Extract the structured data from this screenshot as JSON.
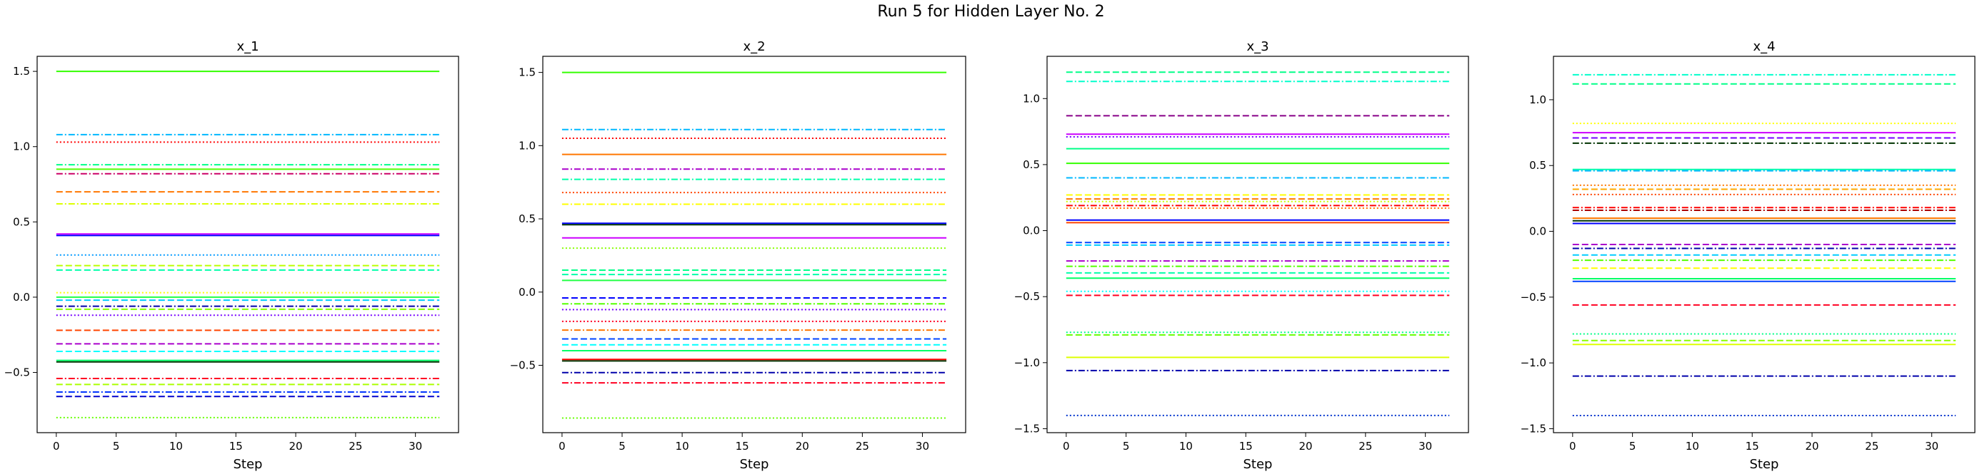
{
  "suptitle": "Run 5 for Hidden Layer No. 2",
  "chart_data": [
    {
      "type": "line",
      "title": "x_1",
      "xlabel": "Step",
      "ylabel": "",
      "xlim": [
        -1.6,
        33.6
      ],
      "ylim": [
        -0.9,
        1.6
      ],
      "xticks": [
        0,
        5,
        10,
        15,
        20,
        25,
        30
      ],
      "yticks": [
        -0.5,
        0.0,
        0.5,
        1.0,
        1.5
      ],
      "ytick_labels": [
        "−0.5",
        "0.0",
        "0.5",
        "1.0",
        "1.5"
      ],
      "x_range": [
        0,
        32
      ],
      "series": [
        {
          "value": 1.5,
          "color": "#33ff00",
          "style": "solid"
        },
        {
          "value": 1.08,
          "color": "#00b8ff",
          "style": "dashdot"
        },
        {
          "value": 1.03,
          "color": "#ff0000",
          "style": "dotted"
        },
        {
          "value": 0.88,
          "color": "#00ff88",
          "style": "dashdot"
        },
        {
          "value": 0.85,
          "color": "#55ff00",
          "style": "solid"
        },
        {
          "value": 0.82,
          "color": "#cc0066",
          "style": "dashdot"
        },
        {
          "value": 0.7,
          "color": "#ff7700",
          "style": "dashed"
        },
        {
          "value": 0.62,
          "color": "#ddff00",
          "style": "dashdot"
        },
        {
          "value": 0.42,
          "color": "#cc00ff",
          "style": "solid"
        },
        {
          "value": 0.41,
          "color": "#0000ff",
          "style": "solid"
        },
        {
          "value": 0.28,
          "color": "#0099ff",
          "style": "dotted"
        },
        {
          "value": 0.21,
          "color": "#bbff00",
          "style": "dashed"
        },
        {
          "value": 0.18,
          "color": "#00ffaa",
          "style": "dashed"
        },
        {
          "value": 0.03,
          "color": "#ffff00",
          "style": "dotted"
        },
        {
          "value": 0.0,
          "color": "#22ff44",
          "style": "solid"
        },
        {
          "value": -0.02,
          "color": "#00ccff",
          "style": "dashed"
        },
        {
          "value": -0.06,
          "color": "#0000aa",
          "style": "dashdot"
        },
        {
          "value": -0.08,
          "color": "#88ff00",
          "style": "dashed"
        },
        {
          "value": -0.12,
          "color": "#7700ff",
          "style": "dotted"
        },
        {
          "value": -0.22,
          "color": "#ff4400",
          "style": "dashed"
        },
        {
          "value": -0.31,
          "color": "#aa00cc",
          "style": "dashed"
        },
        {
          "value": -0.36,
          "color": "#00ffff",
          "style": "dashed"
        },
        {
          "value": -0.42,
          "color": "#00ff66",
          "style": "solid"
        },
        {
          "value": -0.43,
          "color": "#003300",
          "style": "solid"
        },
        {
          "value": -0.54,
          "color": "#ff0022",
          "style": "dashdot"
        },
        {
          "value": -0.58,
          "color": "#aaff00",
          "style": "dashed"
        },
        {
          "value": -0.63,
          "color": "#0033ff",
          "style": "dashdot"
        },
        {
          "value": -0.66,
          "color": "#0000cc",
          "style": "dashed"
        },
        {
          "value": -0.8,
          "color": "#66ff00",
          "style": "dotted"
        }
      ]
    },
    {
      "type": "line",
      "title": "x_2",
      "xlabel": "Step",
      "ylabel": "",
      "xlim": [
        -1.6,
        33.6
      ],
      "ylim": [
        -0.96,
        1.61
      ],
      "xticks": [
        0,
        5,
        10,
        15,
        20,
        25,
        30
      ],
      "yticks": [
        -0.5,
        0.0,
        0.5,
        1.0,
        1.5
      ],
      "ytick_labels": [
        "−0.5",
        "0.0",
        "0.5",
        "1.0",
        "1.5"
      ],
      "x_range": [
        0,
        32
      ],
      "series": [
        {
          "value": 1.5,
          "color": "#33ff00",
          "style": "solid"
        },
        {
          "value": 1.11,
          "color": "#00b8ff",
          "style": "dashdot"
        },
        {
          "value": 1.05,
          "color": "#ff0000",
          "style": "dotted"
        },
        {
          "value": 0.94,
          "color": "#ff7700",
          "style": "solid"
        },
        {
          "value": 0.84,
          "color": "#aa00cc",
          "style": "dashdot"
        },
        {
          "value": 0.77,
          "color": "#00ffaa",
          "style": "dashdot"
        },
        {
          "value": 0.68,
          "color": "#ff4400",
          "style": "dotted"
        },
        {
          "value": 0.6,
          "color": "#ffff00",
          "style": "dashdot"
        },
        {
          "value": 0.47,
          "color": "#0000ff",
          "style": "solid"
        },
        {
          "value": 0.46,
          "color": "#003300",
          "style": "solid"
        },
        {
          "value": 0.37,
          "color": "#cc00ff",
          "style": "solid"
        },
        {
          "value": 0.3,
          "color": "#88ff00",
          "style": "dotted"
        },
        {
          "value": 0.15,
          "color": "#00ff88",
          "style": "dashed"
        },
        {
          "value": 0.12,
          "color": "#00ffaa",
          "style": "dashed"
        },
        {
          "value": 0.08,
          "color": "#22ff44",
          "style": "solid"
        },
        {
          "value": -0.04,
          "color": "#0000ff",
          "style": "dashed"
        },
        {
          "value": -0.08,
          "color": "#55ff00",
          "style": "dashdot"
        },
        {
          "value": -0.12,
          "color": "#7700ff",
          "style": "dotted"
        },
        {
          "value": -0.2,
          "color": "#ff0022",
          "style": "dotted"
        },
        {
          "value": -0.26,
          "color": "#ff7700",
          "style": "dashdot"
        },
        {
          "value": -0.32,
          "color": "#0044ff",
          "style": "dashed"
        },
        {
          "value": -0.36,
          "color": "#00ffff",
          "style": "dashed"
        },
        {
          "value": -0.4,
          "color": "#00ff66",
          "style": "solid"
        },
        {
          "value": -0.46,
          "color": "#ff0000",
          "style": "solid"
        },
        {
          "value": -0.47,
          "color": "#003300",
          "style": "solid"
        },
        {
          "value": -0.55,
          "color": "#0000aa",
          "style": "dashdot"
        },
        {
          "value": -0.62,
          "color": "#ff0022",
          "style": "dashdot"
        },
        {
          "value": -0.86,
          "color": "#66ff00",
          "style": "dotted"
        }
      ]
    },
    {
      "type": "line",
      "title": "x_3",
      "xlabel": "Step",
      "ylabel": "",
      "xlim": [
        -1.6,
        33.6
      ],
      "ylim": [
        -1.53,
        1.32
      ],
      "xticks": [
        0,
        5,
        10,
        15,
        20,
        25,
        30
      ],
      "yticks": [
        -1.5,
        -1.0,
        -0.5,
        0.0,
        0.5,
        1.0
      ],
      "ytick_labels": [
        "−1.5",
        "−1.0",
        "−0.5",
        "0.0",
        "0.5",
        "1.0"
      ],
      "x_range": [
        0,
        32
      ],
      "series": [
        {
          "value": 1.2,
          "color": "#00ff88",
          "style": "dashed"
        },
        {
          "value": 1.13,
          "color": "#00ffcc",
          "style": "dashdot"
        },
        {
          "value": 0.87,
          "color": "#880088",
          "style": "dashed"
        },
        {
          "value": 0.73,
          "color": "#cc00ff",
          "style": "solid"
        },
        {
          "value": 0.71,
          "color": "#7700ff",
          "style": "dotted"
        },
        {
          "value": 0.62,
          "color": "#00ff88",
          "style": "solid"
        },
        {
          "value": 0.51,
          "color": "#33ff00",
          "style": "solid"
        },
        {
          "value": 0.4,
          "color": "#00b8ff",
          "style": "dashdot"
        },
        {
          "value": 0.27,
          "color": "#ffff00",
          "style": "dashed"
        },
        {
          "value": 0.24,
          "color": "#ff7700",
          "style": "dashed"
        },
        {
          "value": 0.22,
          "color": "#ccff00",
          "style": "dotted"
        },
        {
          "value": 0.19,
          "color": "#ff0000",
          "style": "dashdot"
        },
        {
          "value": 0.17,
          "color": "#ff7700",
          "style": "dotted"
        },
        {
          "value": 0.08,
          "color": "#0000ff",
          "style": "solid"
        },
        {
          "value": 0.06,
          "color": "#ff4400",
          "style": "solid"
        },
        {
          "value": -0.09,
          "color": "#0044ff",
          "style": "dashed"
        },
        {
          "value": -0.11,
          "color": "#00ccff",
          "style": "dashed"
        },
        {
          "value": -0.23,
          "color": "#aa00cc",
          "style": "dashdot"
        },
        {
          "value": -0.27,
          "color": "#55ff00",
          "style": "dashdot"
        },
        {
          "value": -0.32,
          "color": "#00ffaa",
          "style": "dashed"
        },
        {
          "value": -0.36,
          "color": "#00ff66",
          "style": "solid"
        },
        {
          "value": -0.46,
          "color": "#00ffff",
          "style": "dotted"
        },
        {
          "value": -0.49,
          "color": "#ff0022",
          "style": "dashed"
        },
        {
          "value": -0.77,
          "color": "#00ff88",
          "style": "dotted"
        },
        {
          "value": -0.79,
          "color": "#66ff00",
          "style": "dashed"
        },
        {
          "value": -0.96,
          "color": "#ddff00",
          "style": "solid"
        },
        {
          "value": -1.06,
          "color": "#0000aa",
          "style": "dashdot"
        },
        {
          "value": -1.4,
          "color": "#0033cc",
          "style": "dotted"
        }
      ]
    },
    {
      "type": "line",
      "title": "x_4",
      "xlabel": "Step",
      "ylabel": "",
      "xlim": [
        -1.6,
        33.6
      ],
      "ylim": [
        -1.53,
        1.33
      ],
      "xticks": [
        0,
        5,
        10,
        15,
        20,
        25,
        30
      ],
      "yticks": [
        -1.5,
        -1.0,
        -0.5,
        0.0,
        0.5,
        1.0
      ],
      "ytick_labels": [
        "−1.5",
        "−1.0",
        "−0.5",
        "0.0",
        "0.5",
        "1.0"
      ],
      "x_range": [
        0,
        32
      ],
      "series": [
        {
          "value": 1.19,
          "color": "#00ffcc",
          "style": "dashdot"
        },
        {
          "value": 1.12,
          "color": "#00ff88",
          "style": "dashed"
        },
        {
          "value": 0.82,
          "color": "#ffff00",
          "style": "dotted"
        },
        {
          "value": 0.75,
          "color": "#cc00ff",
          "style": "solid"
        },
        {
          "value": 0.71,
          "color": "#7700ff",
          "style": "dashed"
        },
        {
          "value": 0.67,
          "color": "#003300",
          "style": "dashdot"
        },
        {
          "value": 0.47,
          "color": "#00ffaa",
          "style": "solid"
        },
        {
          "value": 0.46,
          "color": "#00b8ff",
          "style": "dashdot"
        },
        {
          "value": 0.35,
          "color": "#ff7700",
          "style": "dotted"
        },
        {
          "value": 0.32,
          "color": "#ffaa00",
          "style": "dashed"
        },
        {
          "value": 0.28,
          "color": "#ff4400",
          "style": "dotted"
        },
        {
          "value": 0.18,
          "color": "#ff0000",
          "style": "dashdot"
        },
        {
          "value": 0.16,
          "color": "#aa0000",
          "style": "dashdot"
        },
        {
          "value": 0.1,
          "color": "#ff7700",
          "style": "solid"
        },
        {
          "value": 0.08,
          "color": "#003300",
          "style": "solid"
        },
        {
          "value": 0.06,
          "color": "#0000ff",
          "style": "solid"
        },
        {
          "value": -0.1,
          "color": "#aa00cc",
          "style": "dashed"
        },
        {
          "value": -0.13,
          "color": "#0000aa",
          "style": "dashdot"
        },
        {
          "value": -0.18,
          "color": "#00ccff",
          "style": "dashed"
        },
        {
          "value": -0.22,
          "color": "#55ff00",
          "style": "dashdot"
        },
        {
          "value": -0.28,
          "color": "#ffff00",
          "style": "dashed"
        },
        {
          "value": -0.36,
          "color": "#00ff66",
          "style": "solid"
        },
        {
          "value": -0.38,
          "color": "#0044ff",
          "style": "solid"
        },
        {
          "value": -0.56,
          "color": "#ff0022",
          "style": "dashed"
        },
        {
          "value": -0.78,
          "color": "#00ff88",
          "style": "dotted"
        },
        {
          "value": -0.83,
          "color": "#88ff00",
          "style": "dashed"
        },
        {
          "value": -0.86,
          "color": "#ddff00",
          "style": "solid"
        },
        {
          "value": -1.1,
          "color": "#0000aa",
          "style": "dashdot"
        },
        {
          "value": -1.4,
          "color": "#0033cc",
          "style": "dotted"
        }
      ]
    }
  ]
}
